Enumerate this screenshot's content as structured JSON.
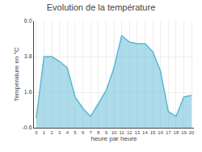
{
  "chart_data": {
    "type": "area",
    "title": "Evolution de la température",
    "xlabel": "heure par heure",
    "ylabel": "Température en °C",
    "x": [
      0,
      1,
      2,
      3,
      4,
      5,
      6,
      7,
      8,
      9,
      10,
      11,
      12,
      13,
      14,
      15,
      16,
      17,
      18,
      19,
      20
    ],
    "values": [
      0.0,
      3.8,
      3.8,
      3.5,
      3.1,
      1.3,
      0.6,
      0.1,
      0.9,
      1.7,
      3.1,
      5.1,
      4.7,
      4.6,
      4.6,
      4.1,
      2.9,
      0.4,
      0.1,
      1.3,
      1.4
    ],
    "color": "#5bb8d4",
    "xlim": [
      -0.3,
      20.3
    ],
    "xticks": [
      0,
      1,
      2,
      3,
      4,
      5,
      6,
      7,
      8,
      9,
      10,
      11,
      12,
      13,
      14,
      15,
      16,
      17,
      18,
      19,
      20
    ],
    "ylim": [
      -0.6,
      6.0
    ],
    "yticks": [
      -0.6,
      1.6,
      3.8,
      {
        "value": 6.0,
        "label": "6.0"
      }
    ],
    "grid": true
  }
}
